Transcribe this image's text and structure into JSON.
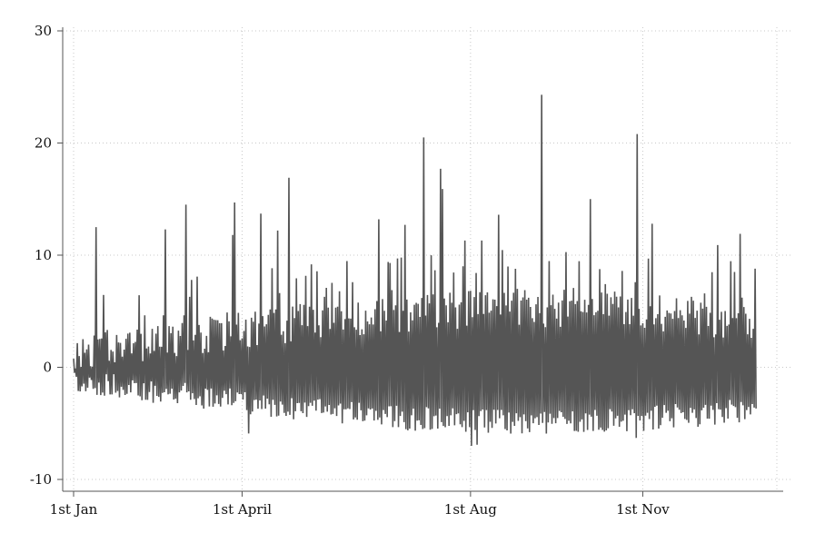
{
  "chart_data": {
    "type": "line",
    "title": "",
    "xlabel": "",
    "ylabel": "",
    "ylim": [
      -10,
      30
    ],
    "yticks": [
      "-10",
      "0",
      "10",
      "20",
      "30"
    ],
    "xrange": [
      "2019-01-01",
      "2020-01-15"
    ],
    "xticks": [
      {
        "label": "1st Jan",
        "date": "2019-01-01"
      },
      {
        "label": "1st April",
        "date": "2019-04-01"
      },
      {
        "label": "1st Aug",
        "date": "2019-08-01"
      },
      {
        "label": "1st Nov",
        "date": "2019-11-01"
      }
    ],
    "grid": true,
    "legend": "none",
    "series": [
      {
        "color": "#555555",
        "description_of_extent": "daily observations 2019-01-01 to 2019-12-31, values mostly between -7 and 8 with spikes",
        "peaks": [
          {
            "date": "2019-01-13",
            "value": 12.5
          },
          {
            "date": "2019-02-19",
            "value": 12.3
          },
          {
            "date": "2019-03-02",
            "value": 14.5
          },
          {
            "date": "2019-03-27",
            "value": 11.8
          },
          {
            "date": "2019-03-28",
            "value": 14.7
          },
          {
            "date": "2019-04-11",
            "value": 13.7
          },
          {
            "date": "2019-04-20",
            "value": 12.2
          },
          {
            "date": "2019-04-26",
            "value": 16.9
          },
          {
            "date": "2019-05-19",
            "value": 13.0
          },
          {
            "date": "2019-06-13",
            "value": 13.2
          },
          {
            "date": "2019-06-27",
            "value": 12.7
          },
          {
            "date": "2019-07-07",
            "value": 20.5
          },
          {
            "date": "2019-07-16",
            "value": 17.7
          },
          {
            "date": "2019-07-17",
            "value": 15.9
          },
          {
            "date": "2019-07-29",
            "value": 11.3
          },
          {
            "date": "2019-08-07",
            "value": 11.3
          },
          {
            "date": "2019-08-16",
            "value": 13.6
          },
          {
            "date": "2019-09-08",
            "value": 24.3
          },
          {
            "date": "2019-10-04",
            "value": 15.0
          },
          {
            "date": "2019-10-29",
            "value": 20.8
          },
          {
            "date": "2019-11-06",
            "value": 12.8
          },
          {
            "date": "2019-12-11",
            "value": 10.9
          },
          {
            "date": "2019-12-23",
            "value": 11.9
          }
        ],
        "troughs": [
          {
            "date": "2019-04-04",
            "value": -5.9
          },
          {
            "date": "2019-08-01",
            "value": -7.0
          },
          {
            "date": "2019-08-04",
            "value": -6.9
          },
          {
            "date": "2019-10-28",
            "value": -6.3
          }
        ]
      }
    ]
  }
}
